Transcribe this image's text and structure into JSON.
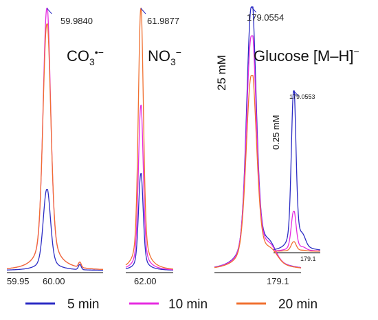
{
  "colors": {
    "min5": "#2B2BC4",
    "min10": "#E62BE0",
    "min20": "#F07030"
  },
  "legend": {
    "items": [
      {
        "label": "5 min",
        "color": "#2B2BC4"
      },
      {
        "label": "10 min",
        "color": "#E62BE0"
      },
      {
        "label": "20 min",
        "color": "#F07030"
      }
    ]
  },
  "chart_data": [
    {
      "type": "line",
      "ion": "CO3•−",
      "peak_label": "59.9840",
      "x_ticks": [
        "59.95",
        "60.00"
      ],
      "xlim": [
        59.93,
        60.06
      ],
      "peak_x": 59.984,
      "series": [
        {
          "name": "5 min",
          "peak_height": 0.31
        },
        {
          "name": "10 min",
          "peak_height": 1.0
        },
        {
          "name": "20 min",
          "peak_height": 0.94
        }
      ]
    },
    {
      "type": "line",
      "ion": "NO3−",
      "peak_label": "61.9877",
      "x_ticks": [
        "62.00"
      ],
      "xlim": [
        61.975,
        62.015
      ],
      "peak_x": 61.9877,
      "series": [
        {
          "name": "5 min",
          "peak_height": 0.37
        },
        {
          "name": "10 min",
          "peak_height": 0.63
        },
        {
          "name": "20 min",
          "peak_height": 1.0
        }
      ]
    },
    {
      "type": "line",
      "ion": "Glucose [M–H]−",
      "concentration": "25 mM",
      "peak_label": "179.0554",
      "x_ticks": [
        "179.1"
      ],
      "xlim": [
        179.0,
        179.13
      ],
      "peak_x": 179.0554,
      "series": [
        {
          "name": "5 min",
          "peak_height": 1.0
        },
        {
          "name": "10 min",
          "peak_height": 0.89
        },
        {
          "name": "20 min",
          "peak_height": 0.74
        }
      ],
      "inset": {
        "concentration": "0.25 mM",
        "peak_label": "179.0553",
        "x_ticks": [
          "179.1"
        ],
        "series": [
          {
            "name": "5 min",
            "peak_height": 1.0
          },
          {
            "name": "10 min",
            "peak_height": 0.25
          },
          {
            "name": "20 min",
            "peak_height": 0.06
          }
        ]
      }
    }
  ]
}
